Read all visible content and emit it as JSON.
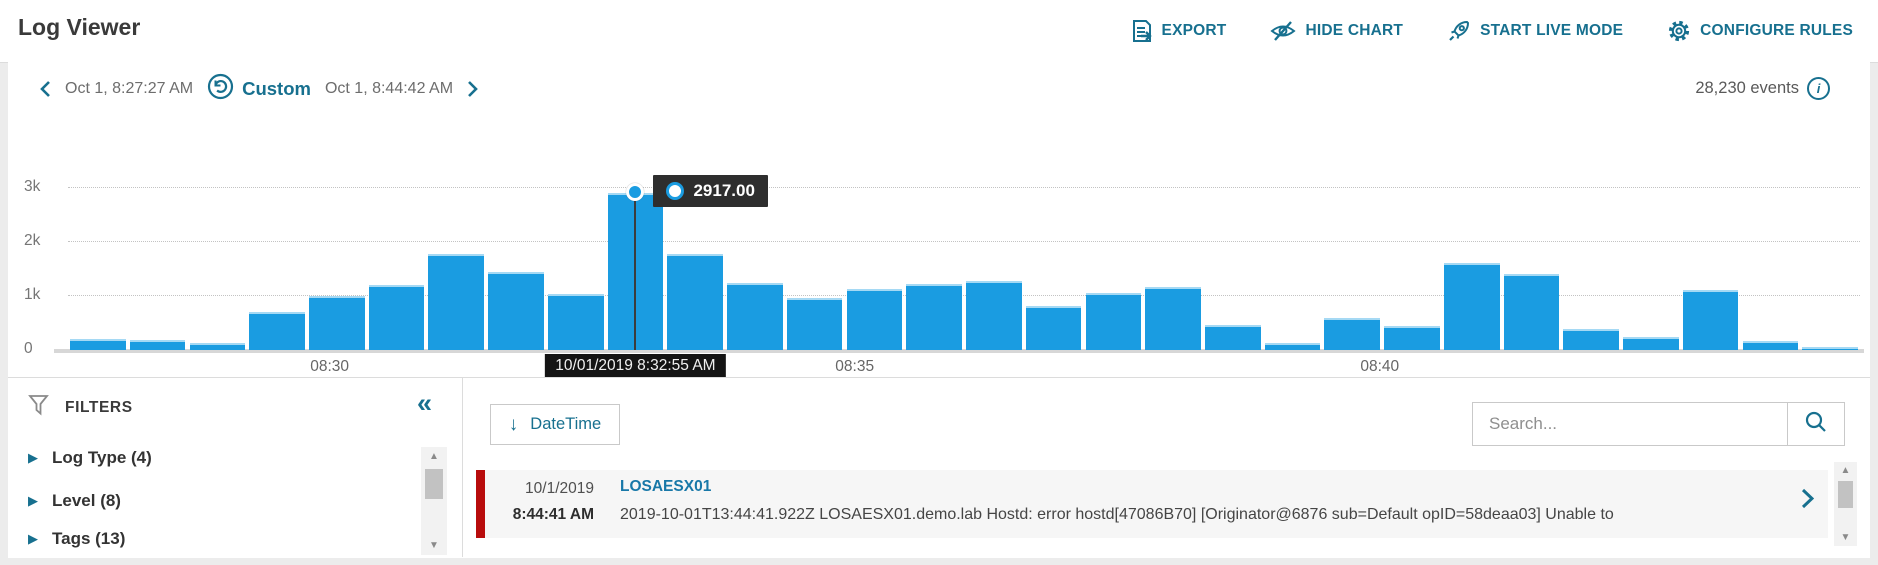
{
  "header": {
    "title": "Log Viewer",
    "actions": [
      {
        "label": "EXPORT",
        "icon": "export-icon"
      },
      {
        "label": "HIDE CHART",
        "icon": "hide-chart-icon"
      },
      {
        "label": "START LIVE MODE",
        "icon": "rocket-icon"
      },
      {
        "label": "CONFIGURE RULES",
        "icon": "gear-icon"
      }
    ]
  },
  "time_nav": {
    "start_time": "Oct 1, 8:27:27 AM",
    "mode_label": "Custom",
    "end_time": "Oct 1, 8:44:42 AM",
    "events_label": "28,230 events"
  },
  "chart_data": {
    "type": "bar",
    "values": [
      200,
      190,
      130,
      710,
      1000,
      1210,
      1780,
      1440,
      1030,
      2917,
      1770,
      1240,
      970,
      1130,
      1220,
      1270,
      810,
      1050,
      1170,
      460,
      130,
      600,
      440,
      1620,
      1410,
      390,
      250,
      1110,
      160,
      60
    ],
    "selected_index": 9,
    "selected_value_label": "2917.00",
    "selected_time_label": "10/01/2019 8:32:55 AM",
    "y_ticks": [
      "0",
      "1k",
      "2k",
      "3k"
    ],
    "ylim": [
      0,
      3250
    ],
    "x_ticks": [
      {
        "label": "08:30",
        "pos": 0.146
      },
      {
        "label": "08:35",
        "pos": 0.439
      },
      {
        "label": "08:40",
        "pos": 0.732
      }
    ],
    "grid": "dotted-horizontal",
    "legend": "none",
    "bar_color": "#1a9ce1"
  },
  "filters": {
    "title": "FILTERS",
    "items": [
      {
        "label": "Log Type (4)"
      },
      {
        "label": "Level (8)"
      },
      {
        "label": "Tags (13)"
      }
    ]
  },
  "log_panel": {
    "sort_button_label": "DateTime",
    "search_placeholder": "Search...",
    "entries": [
      {
        "date": "10/1/2019",
        "time": "8:44:41 AM",
        "host": "LOSAESX01",
        "message": "2019-10-01T13:44:41.922Z LOSAESX01.demo.lab Hostd: error hostd[47086B70] [Originator@6876 sub=Default opID=58deaa03] Unable to"
      }
    ]
  },
  "icons": {
    "collapse": "«",
    "expand_item": "▶",
    "sort_arrow": "↓",
    "scroll_up": "▲",
    "scroll_down": "▼",
    "info": "i"
  },
  "colors": {
    "accent": "#17708f",
    "bar": "#1a9ce1",
    "severity_error": "#b80c0c",
    "host_link": "#1878a8",
    "tooltip_bg": "#2e2e2e"
  }
}
